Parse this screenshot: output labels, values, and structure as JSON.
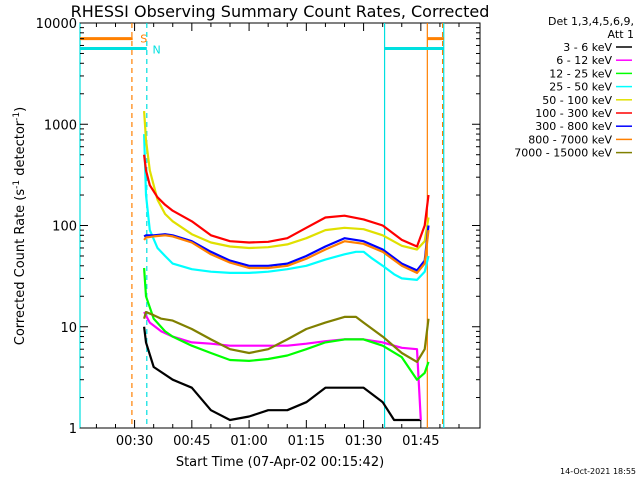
{
  "chart_data": {
    "type": "line",
    "title": "RHESSI Observing Summary Count Rates, Corrected",
    "xlabel": "Start Time (07-Apr-02 00:15:42)",
    "ylabel_main": "Corrected Count Rate (s",
    "ylabel_sup1": "-1",
    "ylabel_mid": " detector",
    "ylabel_sup2": "-1",
    "ylabel_end": ")",
    "ylog": true,
    "ylim": [
      1,
      10000
    ],
    "xlim_min": [
      15.7,
      120.5
    ],
    "x_ticks": [
      {
        "v": 30,
        "label": "00:30"
      },
      {
        "v": 45,
        "label": "00:45"
      },
      {
        "v": 60,
        "label": "01:00"
      },
      {
        "v": 75,
        "label": "01:15"
      },
      {
        "v": 90,
        "label": "01:30"
      },
      {
        "v": 105,
        "label": "01:45"
      }
    ],
    "y_ticks": [
      {
        "v": 1,
        "label": "1"
      },
      {
        "v": 10,
        "label": "10"
      },
      {
        "v": 100,
        "label": "100"
      },
      {
        "v": 1000,
        "label": "1000"
      },
      {
        "v": 10000,
        "label": "10000"
      }
    ],
    "legend_header": [
      "Det 1,3,4,5,6,9,",
      "Att 1"
    ],
    "annotations": [
      {
        "text": "S",
        "x": 31.5,
        "y": 7000,
        "color": "#ff8000"
      },
      {
        "text": "N",
        "x": 34.7,
        "y": 5500,
        "color": "#00e0e0"
      }
    ],
    "flags": [
      {
        "name": "S",
        "color": "#ff8000",
        "y": 7000,
        "segments": [
          [
            15.7,
            29.5
          ],
          [
            106.8,
            111.0
          ]
        ]
      },
      {
        "name": "N",
        "color": "#00e0e0",
        "y": 5600,
        "segments": [
          [
            15.7,
            33.2
          ],
          [
            95.5,
            111.0
          ]
        ]
      }
    ],
    "vlines": [
      {
        "x": 15.7,
        "color": "#00e0e0",
        "dash": false
      },
      {
        "x": 29.3,
        "color": "#ff8000",
        "dash": true
      },
      {
        "x": 33.2,
        "color": "#00e0e0",
        "dash": true
      },
      {
        "x": 95.5,
        "color": "#00e0e0",
        "dash": false
      },
      {
        "x": 106.7,
        "color": "#ff8000",
        "dash": false
      },
      {
        "x": 110.7,
        "color": "#ff8000",
        "dash": true
      },
      {
        "x": 111.0,
        "color": "#00e0e0",
        "dash": false
      }
    ],
    "series": [
      {
        "name": "3 - 6 keV",
        "color": "#000000",
        "x": [
          32.5,
          33,
          35,
          40,
          45,
          50,
          55,
          60,
          65,
          70,
          75,
          80,
          85,
          90,
          95,
          98,
          100,
          104,
          105
        ],
        "y": [
          10,
          7,
          4,
          3,
          2.5,
          1.5,
          1.2,
          1.3,
          1.5,
          1.5,
          1.8,
          2.5,
          2.5,
          2.5,
          1.8,
          1.2,
          1.2,
          1.2,
          1.2
        ]
      },
      {
        "name": "6 - 12 keV",
        "color": "#ff00ff",
        "x": [
          32.5,
          34,
          37,
          40,
          45,
          50,
          55,
          60,
          65,
          70,
          75,
          80,
          85,
          90,
          95,
          98,
          100,
          104,
          105
        ],
        "y": [
          14,
          11,
          9,
          8,
          7,
          6.8,
          6.5,
          6.5,
          6.5,
          6.5,
          6.8,
          7.2,
          7.5,
          7.5,
          7,
          6.5,
          6.2,
          6,
          1.2
        ]
      },
      {
        "name": "12 - 25 keV",
        "color": "#00ff00",
        "x": [
          32.5,
          33,
          35,
          38,
          40,
          45,
          50,
          55,
          60,
          65,
          70,
          75,
          80,
          85,
          90,
          95,
          100,
          104,
          106,
          107
        ],
        "y": [
          38,
          20,
          12,
          9,
          8,
          6.5,
          5.5,
          4.7,
          4.6,
          4.8,
          5.2,
          6,
          7,
          7.5,
          7.5,
          6.5,
          5,
          3,
          3.5,
          4.5
        ]
      },
      {
        "name": "25 - 50 keV",
        "color": "#00ffff",
        "x": [
          32.5,
          33,
          34,
          36,
          38,
          40,
          45,
          50,
          55,
          60,
          65,
          70,
          75,
          80,
          85,
          88,
          90,
          92,
          95,
          98,
          100,
          104,
          106,
          107
        ],
        "y": [
          800,
          200,
          90,
          60,
          50,
          42,
          37,
          35,
          34,
          34,
          35,
          37,
          40,
          46,
          52,
          55,
          55,
          48,
          40,
          33,
          30,
          29,
          35,
          50
        ]
      },
      {
        "name": "50 - 100 keV",
        "color": "#e0e000",
        "x": [
          32.5,
          33,
          34,
          36,
          38,
          40,
          45,
          50,
          55,
          60,
          65,
          70,
          75,
          80,
          85,
          90,
          95,
          100,
          104,
          106,
          107
        ],
        "y": [
          1350,
          700,
          350,
          180,
          130,
          110,
          82,
          68,
          62,
          60,
          61,
          65,
          75,
          90,
          95,
          92,
          80,
          63,
          58,
          70,
          120
        ]
      },
      {
        "name": "100 - 300 keV",
        "color": "#ff0000",
        "x": [
          32.5,
          33,
          34,
          36,
          38,
          40,
          45,
          50,
          55,
          60,
          65,
          70,
          75,
          80,
          85,
          90,
          95,
          100,
          104,
          106,
          107
        ],
        "y": [
          500,
          350,
          250,
          190,
          160,
          140,
          110,
          80,
          70,
          68,
          69,
          75,
          95,
          120,
          125,
          115,
          100,
          72,
          62,
          100,
          200
        ]
      },
      {
        "name": "300 - 800 keV",
        "color": "#0000ff",
        "x": [
          32.5,
          33,
          35,
          38,
          40,
          45,
          50,
          55,
          60,
          65,
          70,
          75,
          80,
          85,
          90,
          95,
          100,
          104,
          106,
          107
        ],
        "y": [
          78,
          80,
          80,
          82,
          80,
          70,
          55,
          45,
          40,
          40,
          42,
          50,
          62,
          75,
          70,
          58,
          42,
          36,
          45,
          100
        ]
      },
      {
        "name": "800 - 7000 keV",
        "color": "#ff8000",
        "x": [
          32.5,
          33,
          35,
          38,
          40,
          45,
          50,
          55,
          60,
          65,
          70,
          75,
          80,
          85,
          90,
          95,
          100,
          104,
          106,
          107
        ],
        "y": [
          72,
          76,
          78,
          80,
          78,
          68,
          52,
          43,
          38,
          38,
          40,
          47,
          58,
          70,
          66,
          55,
          40,
          34,
          42,
          90
        ]
      },
      {
        "name": "7000 - 15000 keV",
        "color": "#808000",
        "x": [
          32.5,
          33,
          35,
          37,
          40,
          45,
          50,
          55,
          60,
          65,
          70,
          75,
          80,
          85,
          88,
          90,
          95,
          100,
          104,
          106,
          107
        ],
        "y": [
          12,
          14,
          13,
          12,
          11.5,
          9.5,
          7.5,
          6,
          5.5,
          6,
          7.5,
          9.5,
          11,
          12.5,
          12.5,
          11,
          8,
          5.5,
          4.5,
          6,
          12
        ]
      }
    ]
  },
  "footer_stamp": "14-Oct-2021 18:55"
}
